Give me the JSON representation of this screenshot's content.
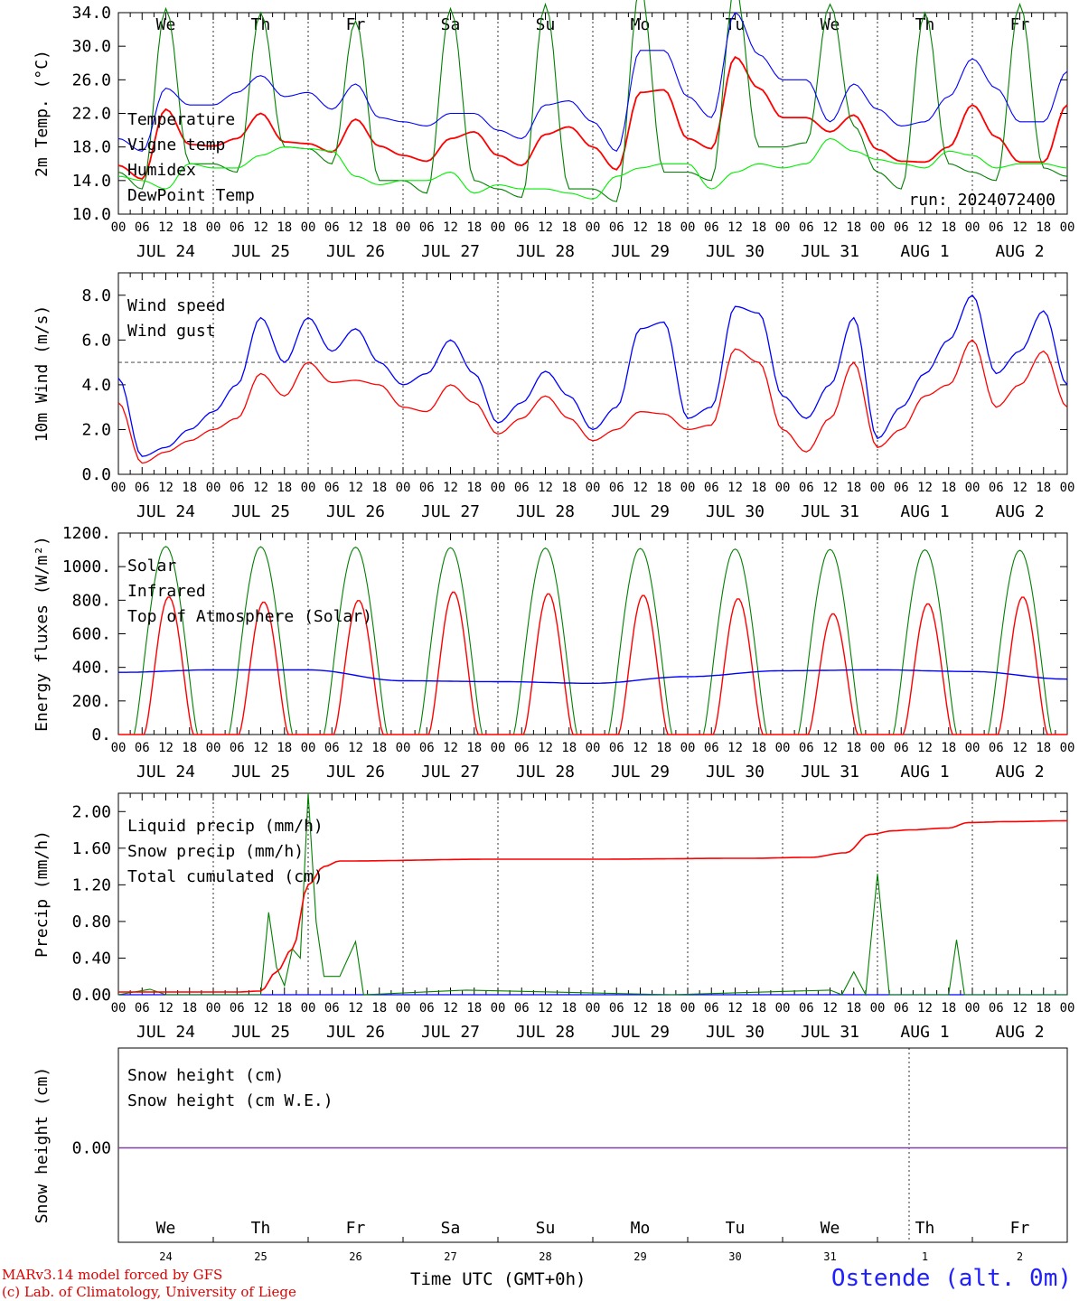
{
  "footer": {
    "credit_line1": "MARv3.14 model forced by GFS",
    "credit_line2": "(c) Lab. of Climatology, University of Liege",
    "time_axis": "Time UTC (GMT+0h)",
    "station": "Ostende (alt. 0m)"
  },
  "chart_data": [
    {
      "type": "line",
      "ylabel": "2m Temp. (°C)",
      "ylim": [
        10.0,
        34.0
      ],
      "yticks": [
        "10.0",
        "14.0",
        "18.0",
        "22.0",
        "26.0",
        "30.0",
        "34.0"
      ],
      "x_hours": "0..240 from 2024-07-24 00 UTC",
      "day_labels": [
        "We",
        "Th",
        "Fr",
        "Sa",
        "Su",
        "Mo",
        "Tu",
        "We",
        "Th",
        "Fr"
      ],
      "weekend_days": [
        "Sa",
        "Su"
      ],
      "date_labels": [
        "JUL 24",
        "JUL 25",
        "JUL 26",
        "JUL 27",
        "JUL 28",
        "JUL 29",
        "JUL 30",
        "JUL 31",
        "AUG  1",
        "AUG  2"
      ],
      "hour_ticks": [
        "00",
        "06",
        "12",
        "18"
      ],
      "annotation": "run: 2024072400",
      "series": [
        {
          "name": "Temperature",
          "color": "#ff0000",
          "hours": [
            0,
            6,
            12,
            18,
            24,
            30,
            36,
            42,
            48,
            54,
            60,
            66,
            72,
            78,
            84,
            90,
            96,
            102,
            108,
            114,
            120,
            126,
            132,
            138,
            144,
            150,
            156,
            162,
            168,
            174,
            180,
            186,
            192,
            198,
            204,
            210,
            216,
            222,
            228,
            234,
            240
          ],
          "values": [
            15.8,
            14.2,
            22.5,
            18.3,
            18.1,
            19.0,
            22.0,
            18.6,
            18.4,
            17.4,
            21.3,
            18.1,
            17.0,
            16.3,
            19.0,
            19.8,
            17.0,
            15.8,
            19.5,
            20.4,
            18.0,
            15.3,
            24.5,
            24.8,
            19.0,
            17.8,
            28.7,
            25.0,
            21.5,
            21.5,
            19.8,
            21.8,
            17.7,
            16.3,
            16.2,
            18.0,
            23.0,
            19.2,
            16.2,
            16.2,
            23.0
          ]
        },
        {
          "name": "Vigne temp",
          "color": "#008000",
          "hours": [
            0,
            6,
            12,
            18,
            24,
            30,
            36,
            42,
            48,
            54,
            60,
            66,
            72,
            78,
            84,
            90,
            96,
            102,
            108,
            114,
            120,
            126,
            132,
            138,
            144,
            150,
            156,
            162,
            168,
            174,
            180,
            186,
            192,
            198,
            204,
            210,
            216,
            222,
            228,
            234,
            240
          ],
          "values": [
            15.0,
            13.0,
            34.5,
            16.0,
            16.0,
            15.0,
            34.0,
            18.0,
            17.8,
            16.0,
            33.0,
            14.0,
            14.0,
            12.5,
            34.5,
            14.0,
            13.0,
            12.0,
            35.0,
            13.0,
            13.0,
            11.5,
            37.0,
            15.0,
            15.0,
            14.0,
            37.0,
            18.0,
            18.0,
            18.5,
            35.0,
            20.5,
            15.0,
            13.0,
            34.0,
            16.0,
            15.0,
            14.0,
            35.0,
            15.5,
            14.5
          ]
        },
        {
          "name": "Humidex",
          "color": "#0000ff",
          "hours": [
            0,
            6,
            12,
            18,
            24,
            30,
            36,
            42,
            48,
            54,
            60,
            66,
            72,
            78,
            84,
            90,
            96,
            102,
            108,
            114,
            120,
            126,
            132,
            138,
            144,
            150,
            156,
            162,
            168,
            174,
            180,
            186,
            192,
            198,
            204,
            210,
            216,
            222,
            228,
            234,
            240
          ],
          "values": [
            19.0,
            17.5,
            25.0,
            23.0,
            23.0,
            24.5,
            26.5,
            24.0,
            24.5,
            22.5,
            25.5,
            21.5,
            21.0,
            20.5,
            22.0,
            22.0,
            20.0,
            19.0,
            23.0,
            23.5,
            21.0,
            17.5,
            29.5,
            29.5,
            24.0,
            21.5,
            34.0,
            29.0,
            26.0,
            26.0,
            21.0,
            25.5,
            22.5,
            20.5,
            21.0,
            24.0,
            28.5,
            25.0,
            21.0,
            21.0,
            27.0
          ]
        },
        {
          "name": "DewPoint Temp",
          "color": "#00ee00",
          "hours": [
            0,
            6,
            12,
            18,
            24,
            30,
            36,
            42,
            48,
            54,
            60,
            66,
            72,
            78,
            84,
            90,
            96,
            102,
            108,
            114,
            120,
            126,
            132,
            138,
            144,
            150,
            156,
            162,
            168,
            174,
            180,
            186,
            192,
            198,
            204,
            210,
            216,
            222,
            228,
            234,
            240
          ],
          "values": [
            14.5,
            14.0,
            13.0,
            16.0,
            15.5,
            15.5,
            17.0,
            18.0,
            17.8,
            17.5,
            14.5,
            13.5,
            14.0,
            14.0,
            15.0,
            12.5,
            13.5,
            13.0,
            13.0,
            12.5,
            11.8,
            14.5,
            15.5,
            16.0,
            16.0,
            13.0,
            15.0,
            16.0,
            15.5,
            16.0,
            19.0,
            17.5,
            16.5,
            16.0,
            15.5,
            17.5,
            17.0,
            15.5,
            16.0,
            16.0,
            15.5
          ]
        }
      ]
    },
    {
      "type": "line",
      "ylabel": "10m Wind (m/s)",
      "ylim": [
        0.0,
        9.0
      ],
      "yticks": [
        "0.0",
        "2.0",
        "4.0",
        "6.0",
        "8.0"
      ],
      "reference_line": 5.0,
      "date_labels": [
        "JUL 24",
        "JUL 25",
        "JUL 26",
        "JUL 27",
        "JUL 28",
        "JUL 29",
        "JUL 30",
        "JUL 31",
        "AUG  1",
        "AUG  2"
      ],
      "hour_ticks": [
        "00",
        "06",
        "12",
        "18"
      ],
      "series": [
        {
          "name": "Wind speed",
          "color": "#ff0000",
          "hours": [
            0,
            6,
            12,
            18,
            24,
            30,
            36,
            42,
            48,
            54,
            60,
            66,
            72,
            78,
            84,
            90,
            96,
            102,
            108,
            114,
            120,
            126,
            132,
            138,
            144,
            150,
            156,
            162,
            168,
            174,
            180,
            186,
            192,
            198,
            204,
            210,
            216,
            222,
            228,
            234,
            240
          ],
          "values": [
            3.2,
            0.5,
            1.0,
            1.5,
            2.0,
            2.5,
            4.5,
            3.5,
            5.0,
            4.1,
            4.2,
            4.0,
            3.0,
            2.8,
            4.0,
            3.2,
            1.8,
            2.5,
            3.5,
            2.5,
            1.5,
            2.0,
            2.8,
            2.7,
            2.0,
            2.2,
            5.6,
            5.0,
            2.0,
            1.0,
            2.5,
            5.0,
            1.2,
            2.0,
            3.5,
            4.0,
            6.0,
            3.0,
            4.0,
            5.5,
            3.0
          ]
        },
        {
          "name": "Wind gust",
          "color": "#0000ff",
          "hours": [
            0,
            6,
            12,
            18,
            24,
            30,
            36,
            42,
            48,
            54,
            60,
            66,
            72,
            78,
            84,
            90,
            96,
            102,
            108,
            114,
            120,
            126,
            132,
            138,
            144,
            150,
            156,
            162,
            168,
            174,
            180,
            186,
            192,
            198,
            204,
            210,
            216,
            222,
            228,
            234,
            240
          ],
          "values": [
            4.3,
            0.8,
            1.2,
            2.0,
            2.8,
            4.0,
            7.0,
            5.0,
            7.0,
            5.5,
            6.5,
            5.0,
            4.0,
            4.5,
            6.0,
            4.5,
            2.3,
            3.2,
            4.6,
            3.5,
            2.0,
            3.0,
            6.5,
            6.8,
            2.5,
            3.0,
            7.5,
            7.2,
            3.5,
            2.5,
            4.0,
            7.0,
            1.6,
            3.0,
            4.5,
            6.0,
            8.0,
            4.5,
            5.5,
            7.3,
            4.0
          ]
        }
      ]
    },
    {
      "type": "line",
      "ylabel": "Energy fluxes (W/m²)",
      "ylim": [
        0,
        1200
      ],
      "yticks": [
        "0.",
        "200.",
        "400.",
        "600.",
        "800.",
        "1000.",
        "1200."
      ],
      "date_labels": [
        "JUL 24",
        "JUL 25",
        "JUL 26",
        "JUL 27",
        "JUL 28",
        "JUL 29",
        "JUL 30",
        "JUL 31",
        "AUG  1",
        "AUG  2"
      ],
      "hour_ticks": [
        "00",
        "06",
        "12",
        "18"
      ],
      "series": [
        {
          "name": "Solar",
          "color": "#ff0000",
          "daily_peaks": [
            820,
            790,
            800,
            850,
            840,
            830,
            810,
            720,
            780,
            820
          ]
        },
        {
          "name": "Infrared",
          "color": "#0000ff",
          "hours": [
            0,
            24,
            48,
            72,
            96,
            120,
            144,
            168,
            192,
            216,
            240
          ],
          "values": [
            370,
            385,
            385,
            320,
            315,
            305,
            345,
            380,
            385,
            375,
            330
          ]
        },
        {
          "name": "Top of Atmosphere (Solar)",
          "color": "#008000",
          "daily_peaks": [
            1120,
            1118,
            1116,
            1113,
            1110,
            1108,
            1105,
            1102,
            1100,
            1097
          ]
        }
      ]
    },
    {
      "type": "line",
      "ylabel": "Precip (mm/h)",
      "ylim": [
        0.0,
        2.2
      ],
      "yticks": [
        "0.00",
        "0.40",
        "0.80",
        "1.20",
        "1.60",
        "2.00"
      ],
      "date_labels": [
        "JUL 24",
        "JUL 25",
        "JUL 26",
        "JUL 27",
        "JUL 28",
        "JUL 29",
        "JUL 30",
        "JUL 31",
        "AUG  1",
        "AUG  2"
      ],
      "hour_ticks": [
        "00",
        "06",
        "12",
        "18"
      ],
      "series": [
        {
          "name": "Liquid precip (mm/h)",
          "color": "#008000",
          "hours": [
            0,
            8,
            12,
            30,
            36,
            38,
            40,
            42,
            44,
            46,
            48,
            50,
            52,
            56,
            60,
            62,
            88,
            140,
            180,
            183,
            186,
            189,
            192,
            195,
            200,
            210,
            212,
            214,
            218,
            240
          ],
          "values": [
            0.0,
            0.06,
            0.0,
            0.0,
            0.0,
            0.9,
            0.3,
            0.1,
            0.5,
            0.4,
            2.2,
            0.8,
            0.2,
            0.2,
            0.58,
            0.0,
            0.05,
            0.0,
            0.05,
            0.0,
            0.25,
            0.0,
            1.32,
            0.0,
            0.0,
            0.0,
            0.6,
            0.0,
            0.0,
            0.0
          ]
        },
        {
          "name": "Snow precip (mm/h)",
          "color": "#0000ff",
          "hours": [
            0,
            240
          ],
          "values": [
            0,
            0
          ]
        },
        {
          "name": "Total cumulated (cm)",
          "color": "#ff0000",
          "hours": [
            0,
            24,
            30,
            36,
            40,
            44,
            48,
            52,
            56,
            96,
            120,
            160,
            175,
            184,
            190,
            196,
            200,
            210,
            215,
            225,
            240
          ],
          "values": [
            0.03,
            0.03,
            0.03,
            0.04,
            0.25,
            0.5,
            1.2,
            1.4,
            1.46,
            1.48,
            1.48,
            1.49,
            1.5,
            1.55,
            1.75,
            1.79,
            1.8,
            1.82,
            1.88,
            1.89,
            1.9
          ]
        }
      ]
    },
    {
      "type": "line",
      "ylabel": "Snow height (cm)",
      "ytick": "0.00",
      "day_labels": [
        "We",
        "Th",
        "Fr",
        "Sa",
        "Su",
        "Mo",
        "Tu",
        "We",
        "Th",
        "Fr"
      ],
      "day_numbers": [
        "24",
        "25",
        "26",
        "27",
        "28",
        "29",
        "30",
        "31",
        "1",
        "2"
      ],
      "series": [
        {
          "name": "Snow height (cm)",
          "color": "#ff0000",
          "hours": [
            0,
            240
          ],
          "values": [
            0,
            0
          ]
        },
        {
          "name": "Snow height (cm W.E.)",
          "color": "#0000ff",
          "hours": [
            0,
            240
          ],
          "values": [
            0,
            0
          ]
        }
      ]
    }
  ]
}
